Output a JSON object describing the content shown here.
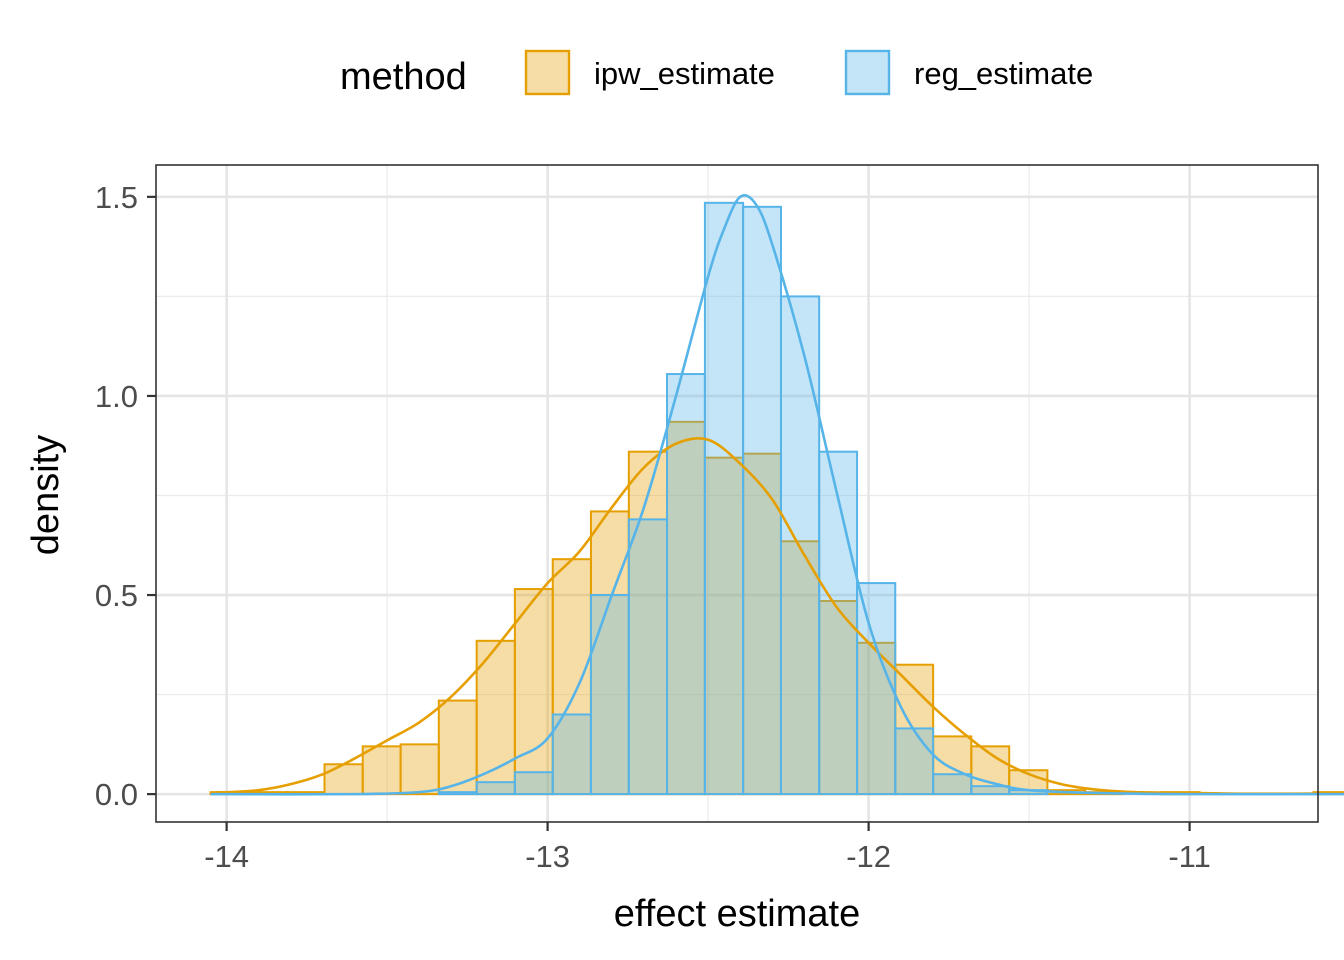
{
  "chart_data": {
    "type": "histogram",
    "title": "",
    "xlabel": "effect estimate",
    "ylabel": "density",
    "xlim": [
      -14.22,
      -10.6
    ],
    "ylim": [
      -0.07,
      1.58
    ],
    "xticks": [
      -14,
      -13,
      -12,
      -11
    ],
    "xtick_labels": [
      "-14",
      "-13",
      "-12",
      "-11"
    ],
    "yticks": [
      0.0,
      0.5,
      1.0,
      1.5
    ],
    "ytick_labels": [
      "0.0",
      "0.5",
      "1.0",
      "1.5"
    ],
    "grid": true,
    "legend": {
      "title": "method",
      "position": "top",
      "entries": [
        "ipw_estimate",
        "reg_estimate"
      ]
    },
    "bin_width": 0.1185,
    "series": [
      {
        "name": "ipw_estimate",
        "stroke": "#E69F00",
        "fill": "#E69F00",
        "fill_opacity": 0.35,
        "bins": [
          {
            "x0": -14.05,
            "x1": -13.932,
            "y": 0.005
          },
          {
            "x0": -13.932,
            "x1": -13.813,
            "y": 0.005
          },
          {
            "x0": -13.813,
            "x1": -13.695,
            "y": 0.005
          },
          {
            "x0": -13.695,
            "x1": -13.576,
            "y": 0.075
          },
          {
            "x0": -13.576,
            "x1": -13.458,
            "y": 0.12
          },
          {
            "x0": -13.458,
            "x1": -13.339,
            "y": 0.125
          },
          {
            "x0": -13.339,
            "x1": -13.221,
            "y": 0.235
          },
          {
            "x0": -13.221,
            "x1": -13.102,
            "y": 0.385
          },
          {
            "x0": -13.102,
            "x1": -12.984,
            "y": 0.515
          },
          {
            "x0": -12.984,
            "x1": -12.865,
            "y": 0.59
          },
          {
            "x0": -12.865,
            "x1": -12.747,
            "y": 0.71
          },
          {
            "x0": -12.747,
            "x1": -12.628,
            "y": 0.86
          },
          {
            "x0": -12.628,
            "x1": -12.51,
            "y": 0.935
          },
          {
            "x0": -12.51,
            "x1": -12.391,
            "y": 0.845
          },
          {
            "x0": -12.391,
            "x1": -12.273,
            "y": 0.855
          },
          {
            "x0": -12.273,
            "x1": -12.154,
            "y": 0.635
          },
          {
            "x0": -12.154,
            "x1": -12.036,
            "y": 0.485
          },
          {
            "x0": -12.036,
            "x1": -11.917,
            "y": 0.38
          },
          {
            "x0": -11.917,
            "x1": -11.799,
            "y": 0.325
          },
          {
            "x0": -11.799,
            "x1": -11.68,
            "y": 0.145
          },
          {
            "x0": -11.68,
            "x1": -11.562,
            "y": 0.12
          },
          {
            "x0": -11.562,
            "x1": -11.443,
            "y": 0.06
          },
          {
            "x0": -11.443,
            "x1": -11.325,
            "y": 0.01
          },
          {
            "x0": -11.325,
            "x1": -11.206,
            "y": 0.005
          },
          {
            "x0": -11.206,
            "x1": -11.088,
            "y": 0.0
          },
          {
            "x0": -11.088,
            "x1": -10.969,
            "y": 0.005
          },
          {
            "x0": -10.969,
            "x1": -10.851,
            "y": 0.0
          },
          {
            "x0": -10.851,
            "x1": -10.732,
            "y": 0.0
          },
          {
            "x0": -10.732,
            "x1": -10.614,
            "y": 0.0
          },
          {
            "x0": -10.614,
            "x1": -10.495,
            "y": 0.005
          }
        ],
        "density": {
          "x": [
            -14.05,
            -13.9,
            -13.8,
            -13.7,
            -13.6,
            -13.5,
            -13.4,
            -13.3,
            -13.2,
            -13.1,
            -13.0,
            -12.9,
            -12.8,
            -12.7,
            -12.6,
            -12.5,
            -12.4,
            -12.3,
            -12.2,
            -12.1,
            -12.0,
            -11.9,
            -11.8,
            -11.7,
            -11.6,
            -11.5,
            -11.4,
            -11.3,
            -11.2,
            -11.1,
            -11.0,
            -10.8,
            -10.5
          ],
          "y": [
            0.003,
            0.01,
            0.025,
            0.05,
            0.09,
            0.135,
            0.18,
            0.245,
            0.33,
            0.43,
            0.53,
            0.61,
            0.72,
            0.82,
            0.88,
            0.89,
            0.83,
            0.74,
            0.6,
            0.47,
            0.38,
            0.3,
            0.22,
            0.15,
            0.09,
            0.05,
            0.025,
            0.012,
            0.006,
            0.004,
            0.003,
            0.001,
            0.002
          ]
        }
      },
      {
        "name": "reg_estimate",
        "stroke": "#56B4E9",
        "fill": "#56B4E9",
        "fill_opacity": 0.35,
        "bins": [
          {
            "x0": -13.339,
            "x1": -13.221,
            "y": 0.005
          },
          {
            "x0": -13.221,
            "x1": -13.102,
            "y": 0.03
          },
          {
            "x0": -13.102,
            "x1": -12.984,
            "y": 0.055
          },
          {
            "x0": -12.984,
            "x1": -12.865,
            "y": 0.2
          },
          {
            "x0": -12.865,
            "x1": -12.747,
            "y": 0.5
          },
          {
            "x0": -12.747,
            "x1": -12.628,
            "y": 0.69
          },
          {
            "x0": -12.628,
            "x1": -12.51,
            "y": 1.055
          },
          {
            "x0": -12.51,
            "x1": -12.391,
            "y": 1.485
          },
          {
            "x0": -12.391,
            "x1": -12.273,
            "y": 1.475
          },
          {
            "x0": -12.273,
            "x1": -12.154,
            "y": 1.25
          },
          {
            "x0": -12.154,
            "x1": -12.036,
            "y": 0.86
          },
          {
            "x0": -12.036,
            "x1": -11.917,
            "y": 0.53
          },
          {
            "x0": -11.917,
            "x1": -11.799,
            "y": 0.165
          },
          {
            "x0": -11.799,
            "x1": -11.68,
            "y": 0.05
          },
          {
            "x0": -11.68,
            "x1": -11.562,
            "y": 0.02
          },
          {
            "x0": -11.562,
            "x1": -11.443,
            "y": 0.01
          }
        ],
        "density": {
          "x": [
            -14.05,
            -13.6,
            -13.4,
            -13.3,
            -13.2,
            -13.1,
            -13.0,
            -12.9,
            -12.8,
            -12.7,
            -12.6,
            -12.5,
            -12.45,
            -12.4,
            -12.35,
            -12.3,
            -12.2,
            -12.1,
            -12.0,
            -11.9,
            -11.8,
            -11.7,
            -11.6,
            -11.5,
            -11.3,
            -11.0,
            -10.5
          ],
          "y": [
            0.0,
            0.0,
            0.005,
            0.02,
            0.05,
            0.09,
            0.14,
            0.28,
            0.5,
            0.72,
            1.0,
            1.3,
            1.42,
            1.5,
            1.48,
            1.38,
            1.1,
            0.76,
            0.43,
            0.22,
            0.1,
            0.05,
            0.025,
            0.01,
            0.003,
            0.0,
            0.0
          ]
        }
      }
    ]
  }
}
